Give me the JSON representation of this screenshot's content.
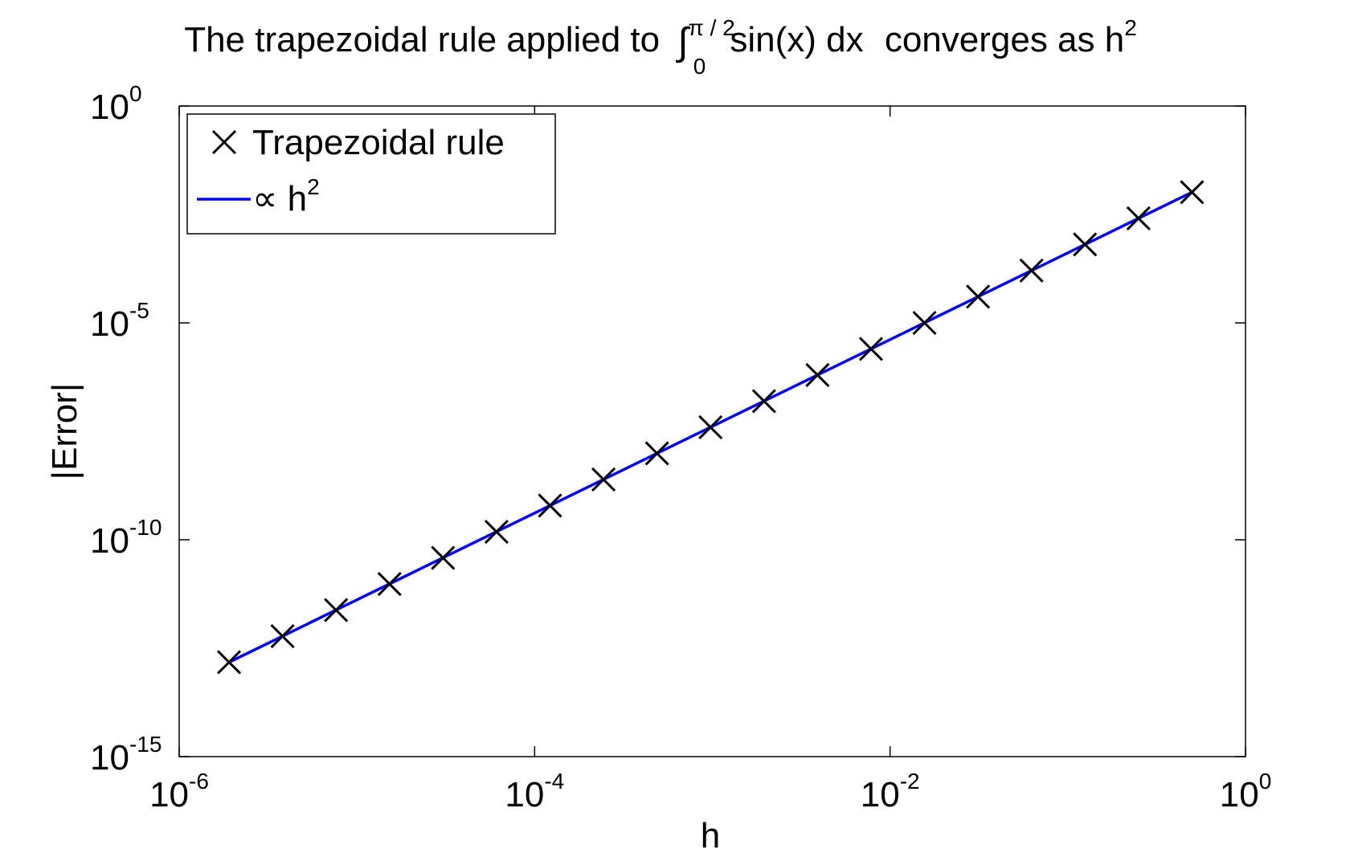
{
  "chart_data": {
    "type": "scatter",
    "title": {
      "prefix": "The trapezoidal rule applied to",
      "integral_upper": "π / 2",
      "integral_lower": "0",
      "integrand": "sin(x) dx",
      "suffix": "converges as h",
      "suffix_exponent": "2"
    },
    "xlabel": "h",
    "ylabel": "|Error|",
    "xscale": "log",
    "yscale": "log",
    "xlim": [
      1e-06,
      1
    ],
    "ylim": [
      1e-15,
      1
    ],
    "x_ticks": [
      {
        "value": 1e-06,
        "base": "10",
        "exponent": "-6"
      },
      {
        "value": 0.0001,
        "base": "10",
        "exponent": "-4"
      },
      {
        "value": 0.01,
        "base": "10",
        "exponent": "-2"
      },
      {
        "value": 1,
        "base": "10",
        "exponent": "0"
      }
    ],
    "y_ticks": [
      {
        "value": 1e-15,
        "base": "10",
        "exponent": "-15"
      },
      {
        "value": 1e-10,
        "base": "10",
        "exponent": "-10"
      },
      {
        "value": 1e-05,
        "base": "10",
        "exponent": "-5"
      },
      {
        "value": 1,
        "base": "10",
        "exponent": "0"
      }
    ],
    "grid": false,
    "legend_position": "top-left",
    "series": [
      {
        "name": "Trapezoidal rule",
        "kind": "markers",
        "marker": "x",
        "color": "#000000",
        "x": [
          0.5,
          0.25,
          0.125,
          0.0625,
          0.03125,
          0.015625,
          0.0078125,
          0.00390625,
          0.001953125,
          0.0009765625,
          0.00048828125,
          0.000244140625,
          0.0001220703125,
          6.103515625e-05,
          3.0517578125e-05,
          1.52587890625e-05,
          7.62939453125e-06,
          3.814697265625e-06,
          1.9073486328125e-06
        ],
        "y": [
          0.0103,
          0.00257,
          0.000643,
          0.000161,
          4.02e-05,
          1e-05,
          2.51e-06,
          6.28e-07,
          1.57e-07,
          3.92e-08,
          9.81e-09,
          2.45e-09,
          6.13e-10,
          1.53e-10,
          3.83e-11,
          9.58e-12,
          2.39e-12,
          5.99e-13,
          1.5e-13
        ]
      },
      {
        "name": "∝ h",
        "name_exponent": "2",
        "kind": "line",
        "color": "#0000ff",
        "x": [
          0.5,
          1.9073486328125e-06
        ],
        "y": [
          0.0103,
          1.5e-13
        ]
      }
    ]
  }
}
